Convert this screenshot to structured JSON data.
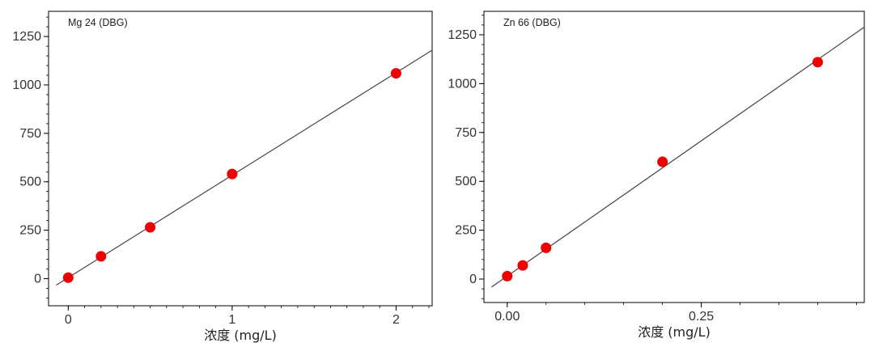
{
  "chart_data": [
    {
      "type": "scatter",
      "title": "Mg 24 (DBG)",
      "xlabel": "浓度 (mg/L)",
      "ylabel": "",
      "xlim": [
        -0.12,
        2.22
      ],
      "ylim": [
        -140,
        1380
      ],
      "xticks": [
        0,
        1,
        2
      ],
      "xtick_labels": [
        "0",
        "1",
        "2"
      ],
      "yticks": [
        0,
        250,
        500,
        750,
        1000,
        1250
      ],
      "ytick_labels": [
        "0",
        "250",
        "500",
        "750",
        "1000",
        "1250"
      ],
      "series": [
        {
          "x": [
            0,
            0.2,
            0.5,
            1,
            2
          ],
          "y": [
            5,
            115,
            265,
            540,
            1060
          ]
        }
      ],
      "fit_line": {
        "slope": 529,
        "intercept": 5
      },
      "point_color": "#ee0000",
      "line_color": "#444444",
      "grid": false
    },
    {
      "type": "scatter",
      "title": "Zn 66 (DBG)",
      "xlabel": "浓度 (mg/L)",
      "ylabel": "",
      "xlim": [
        -0.03,
        0.46
      ],
      "ylim": [
        -120,
        1370
      ],
      "xticks": [
        0,
        0.25
      ],
      "xtick_labels": [
        "0.00",
        "0.25"
      ],
      "yticks": [
        0,
        250,
        500,
        750,
        1000,
        1250
      ],
      "ytick_labels": [
        "0",
        "250",
        "500",
        "750",
        "1000",
        "1250"
      ],
      "series": [
        {
          "x": [
            0,
            0.02,
            0.05,
            0.2,
            0.4
          ],
          "y": [
            15,
            70,
            160,
            600,
            1110
          ]
        }
      ],
      "fit_line": {
        "slope": 2770,
        "intercept": 15
      },
      "point_color": "#ee0000",
      "line_color": "#444444",
      "grid": false
    }
  ]
}
